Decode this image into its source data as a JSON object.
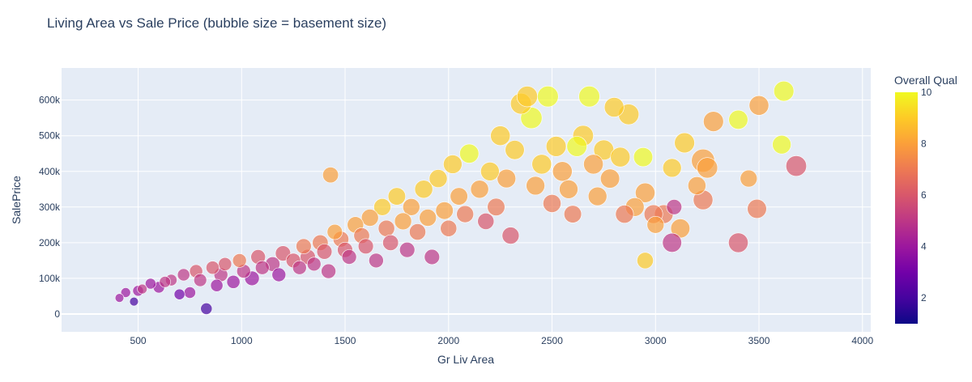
{
  "chart_data": {
    "type": "scatter",
    "title": "Living Area vs Sale Price (bubble size = basement size)",
    "xlabel": "Gr Liv Area",
    "ylabel": "SalePrice",
    "xlim": [
      130,
      4040
    ],
    "ylim": [
      -50000,
      690000
    ],
    "xticks": [
      500,
      1000,
      1500,
      2000,
      2500,
      3000,
      3500,
      4000
    ],
    "xtick_labels": [
      "500",
      "1000",
      "1500",
      "2000",
      "2500",
      "3000",
      "3500",
      "4000"
    ],
    "yticks": [
      0,
      100000,
      200000,
      300000,
      400000,
      500000,
      600000
    ],
    "ytick_labels": [
      "0",
      "100k",
      "200k",
      "300k",
      "400k",
      "500k",
      "600k"
    ],
    "colorbar": {
      "title": "Overall Qual",
      "range": [
        1,
        10
      ],
      "ticks": [
        2,
        4,
        6,
        8,
        10
      ],
      "tick_labels": [
        "2",
        "4",
        "6",
        "8",
        "10"
      ],
      "colorscale": [
        "#0d0887",
        "#46039f",
        "#7201a8",
        "#9c179e",
        "#bd3786",
        "#d8576b",
        "#ed7953",
        "#fb9f3a",
        "#fdca26",
        "#f0f921"
      ]
    },
    "grid": true,
    "bubble_size_variable": "basement size",
    "points_label": "sample of depicted points: [Gr Liv Area, SalePrice, Overall Qual, basement size sqft]",
    "points": [
      [
        410,
        45000,
        4,
        400
      ],
      [
        440,
        60000,
        4,
        500
      ],
      [
        480,
        35000,
        2,
        400
      ],
      [
        500,
        65000,
        4,
        600
      ],
      [
        520,
        70000,
        5,
        500
      ],
      [
        560,
        85000,
        4,
        600
      ],
      [
        600,
        75000,
        4,
        700
      ],
      [
        630,
        90000,
        5,
        650
      ],
      [
        660,
        95000,
        5,
        700
      ],
      [
        700,
        55000,
        3,
        600
      ],
      [
        720,
        110000,
        5,
        800
      ],
      [
        750,
        60000,
        4,
        700
      ],
      [
        780,
        120000,
        6,
        900
      ],
      [
        800,
        95000,
        5,
        850
      ],
      [
        830,
        15000,
        2,
        700
      ],
      [
        860,
        130000,
        6,
        900
      ],
      [
        880,
        80000,
        4,
        800
      ],
      [
        900,
        110000,
        5,
        1000
      ],
      [
        920,
        140000,
        6,
        900
      ],
      [
        960,
        90000,
        4,
        900
      ],
      [
        990,
        150000,
        7,
        1000
      ],
      [
        1010,
        120000,
        5,
        1000
      ],
      [
        1050,
        100000,
        4,
        1100
      ],
      [
        1080,
        160000,
        6,
        1100
      ],
      [
        1100,
        130000,
        5,
        1000
      ],
      [
        1150,
        140000,
        5,
        1100
      ],
      [
        1180,
        110000,
        4,
        1000
      ],
      [
        1200,
        170000,
        6,
        1200
      ],
      [
        1250,
        150000,
        6,
        1100
      ],
      [
        1280,
        130000,
        5,
        1000
      ],
      [
        1300,
        190000,
        7,
        1200
      ],
      [
        1320,
        160000,
        6,
        1200
      ],
      [
        1350,
        140000,
        5,
        1000
      ],
      [
        1380,
        200000,
        7,
        1300
      ],
      [
        1400,
        175000,
        6,
        1200
      ],
      [
        1420,
        120000,
        5,
        1100
      ],
      [
        1430,
        390000,
        8,
        1300
      ],
      [
        1450,
        230000,
        8,
        1200
      ],
      [
        1480,
        210000,
        7,
        1300
      ],
      [
        1500,
        180000,
        6,
        1200
      ],
      [
        1520,
        160000,
        5,
        1100
      ],
      [
        1550,
        250000,
        8,
        1400
      ],
      [
        1580,
        220000,
        7,
        1300
      ],
      [
        1600,
        190000,
        6,
        1200
      ],
      [
        1620,
        270000,
        8,
        1500
      ],
      [
        1650,
        150000,
        5,
        1100
      ],
      [
        1680,
        300000,
        9,
        1500
      ],
      [
        1700,
        240000,
        7,
        1400
      ],
      [
        1720,
        200000,
        6,
        1300
      ],
      [
        1750,
        330000,
        9,
        1600
      ],
      [
        1780,
        260000,
        8,
        1500
      ],
      [
        1800,
        180000,
        5,
        1200
      ],
      [
        1820,
        300000,
        8,
        1500
      ],
      [
        1850,
        230000,
        7,
        1400
      ],
      [
        1880,
        350000,
        9,
        1700
      ],
      [
        1900,
        270000,
        8,
        1500
      ],
      [
        1920,
        160000,
        5,
        1200
      ],
      [
        1950,
        380000,
        9,
        1700
      ],
      [
        1980,
        290000,
        8,
        1600
      ],
      [
        2000,
        240000,
        7,
        1400
      ],
      [
        2020,
        420000,
        9,
        1800
      ],
      [
        2050,
        330000,
        8,
        1600
      ],
      [
        2080,
        280000,
        7,
        1500
      ],
      [
        2100,
        450000,
        10,
        1900
      ],
      [
        2150,
        350000,
        8,
        1700
      ],
      [
        2180,
        260000,
        6,
        1400
      ],
      [
        2200,
        400000,
        9,
        1800
      ],
      [
        2230,
        300000,
        7,
        1600
      ],
      [
        2250,
        500000,
        9,
        2000
      ],
      [
        2280,
        380000,
        8,
        1800
      ],
      [
        2300,
        220000,
        6,
        1500
      ],
      [
        2320,
        460000,
        9,
        1900
      ],
      [
        2350,
        590000,
        9,
        2300
      ],
      [
        2380,
        610000,
        9,
        2200
      ],
      [
        2400,
        550000,
        10,
        2400
      ],
      [
        2420,
        360000,
        8,
        1800
      ],
      [
        2450,
        420000,
        9,
        2000
      ],
      [
        2480,
        610000,
        10,
        2300
      ],
      [
        2500,
        310000,
        7,
        1700
      ],
      [
        2520,
        470000,
        9,
        2100
      ],
      [
        2550,
        400000,
        8,
        2000
      ],
      [
        2580,
        350000,
        8,
        1800
      ],
      [
        2600,
        280000,
        7,
        1600
      ],
      [
        2620,
        470000,
        10,
        2100
      ],
      [
        2650,
        500000,
        9,
        2200
      ],
      [
        2680,
        610000,
        10,
        2300
      ],
      [
        2700,
        420000,
        8,
        2000
      ],
      [
        2720,
        330000,
        8,
        1800
      ],
      [
        2750,
        460000,
        9,
        2100
      ],
      [
        2780,
        380000,
        8,
        1900
      ],
      [
        2800,
        580000,
        9,
        2000
      ],
      [
        2830,
        440000,
        9,
        2000
      ],
      [
        2850,
        280000,
        7,
        1700
      ],
      [
        2870,
        560000,
        9,
        2200
      ],
      [
        2900,
        300000,
        8,
        1800
      ],
      [
        2940,
        440000,
        10,
        1900
      ],
      [
        2950,
        340000,
        8,
        2000
      ],
      [
        2950,
        150000,
        9,
        1400
      ],
      [
        2990,
        280000,
        7,
        1800
      ],
      [
        3000,
        250000,
        8,
        1500
      ],
      [
        3040,
        280000,
        7,
        1800
      ],
      [
        3080,
        410000,
        9,
        1800
      ],
      [
        3080,
        200000,
        5,
        1900
      ],
      [
        3090,
        300000,
        5,
        1200
      ],
      [
        3120,
        240000,
        8,
        1900
      ],
      [
        3140,
        480000,
        9,
        2100
      ],
      [
        3200,
        360000,
        8,
        1700
      ],
      [
        3230,
        430000,
        8,
        2800
      ],
      [
        3230,
        320000,
        7,
        2000
      ],
      [
        3250,
        410000,
        8,
        2200
      ],
      [
        3280,
        540000,
        8,
        2100
      ],
      [
        3400,
        200000,
        6,
        2000
      ],
      [
        3400,
        545000,
        10,
        1900
      ],
      [
        3450,
        380000,
        8,
        1500
      ],
      [
        3490,
        295000,
        7,
        1900
      ],
      [
        3500,
        585000,
        8,
        2000
      ],
      [
        3610,
        475000,
        10,
        1800
      ],
      [
        3620,
        625000,
        10,
        2100
      ],
      [
        3680,
        415000,
        6,
        2200
      ]
    ]
  }
}
